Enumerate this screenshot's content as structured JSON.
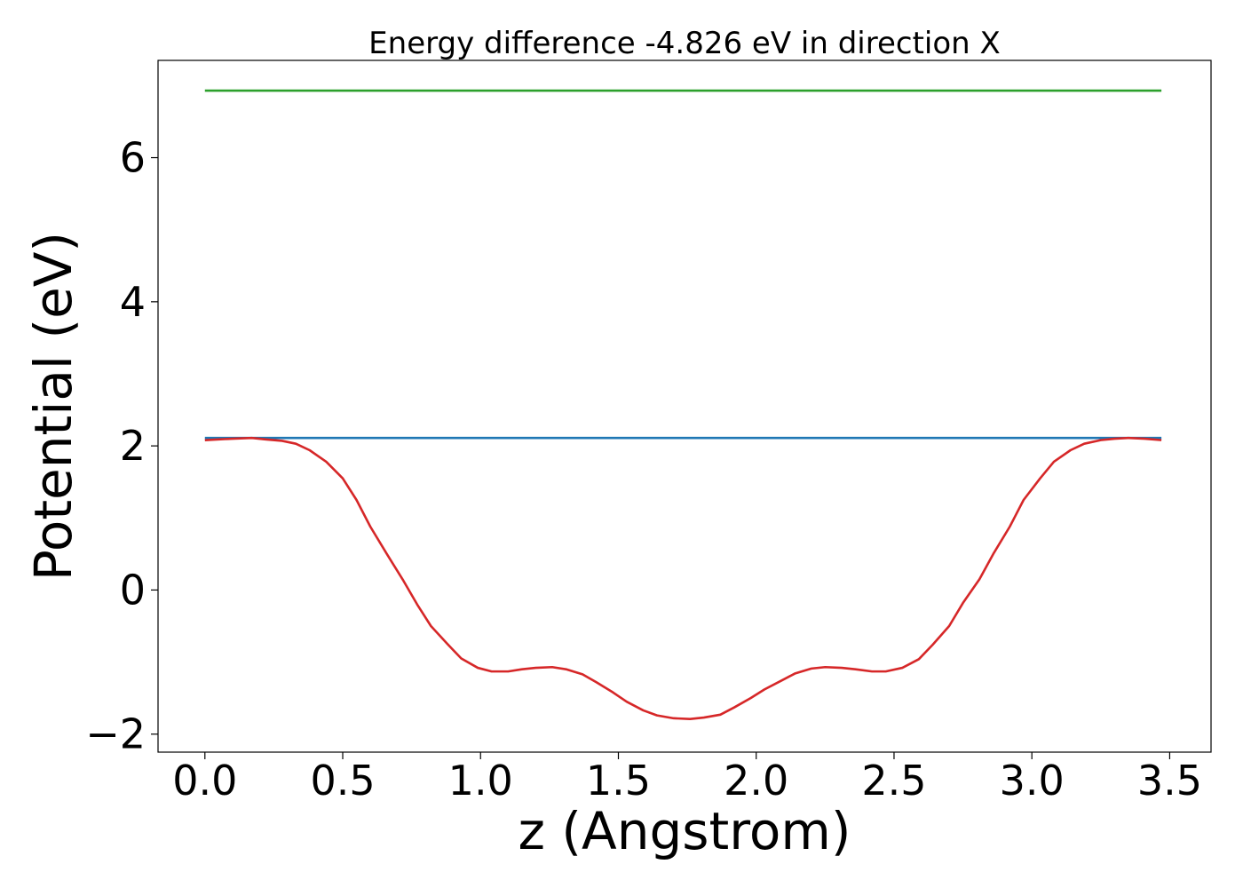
{
  "chart_data": {
    "type": "line",
    "title": "Energy difference -4.826 eV in direction X",
    "xlabel": "z (Angstrom)",
    "ylabel": "Potential (eV)",
    "xlim": [
      -0.17,
      3.65
    ],
    "ylim": [
      -2.25,
      7.35
    ],
    "x_ticks": [
      0.0,
      0.5,
      1.0,
      1.5,
      2.0,
      2.5,
      3.0,
      3.5
    ],
    "x_tick_labels": [
      "0.0",
      "0.5",
      "1.0",
      "1.5",
      "2.0",
      "2.5",
      "3.0",
      "3.5"
    ],
    "y_ticks": [
      -2,
      0,
      2,
      4,
      6
    ],
    "y_tick_labels": [
      "−2",
      "0",
      "2",
      "4",
      "6"
    ],
    "grid": false,
    "legend": "none",
    "series": [
      {
        "color": "#2ca02c",
        "x": [
          0.0,
          3.47
        ],
        "y": [
          6.93,
          6.93
        ]
      },
      {
        "color": "#1f77b4",
        "x": [
          0.0,
          3.47
        ],
        "y": [
          2.11,
          2.11
        ]
      },
      {
        "color": "#d62728",
        "x": [
          0.0,
          0.05,
          0.1,
          0.17,
          0.22,
          0.28,
          0.33,
          0.38,
          0.44,
          0.5,
          0.55,
          0.6,
          0.66,
          0.72,
          0.77,
          0.82,
          0.88,
          0.93,
          0.99,
          1.04,
          1.1,
          1.15,
          1.2,
          1.26,
          1.31,
          1.37,
          1.42,
          1.48,
          1.53,
          1.59,
          1.64,
          1.7,
          1.76,
          1.81,
          1.87,
          1.92,
          1.98,
          2.03,
          2.09,
          2.14,
          2.2,
          2.25,
          2.31,
          2.36,
          2.42,
          2.47,
          2.53,
          2.59,
          2.64,
          2.7,
          2.75,
          2.81,
          2.86,
          2.92,
          2.97,
          3.03,
          3.08,
          3.14,
          3.19,
          3.25,
          3.3,
          3.35,
          3.41,
          3.47
        ],
        "y": [
          2.08,
          2.09,
          2.1,
          2.11,
          2.09,
          2.07,
          2.03,
          1.94,
          1.78,
          1.55,
          1.25,
          0.88,
          0.5,
          0.13,
          -0.2,
          -0.5,
          -0.75,
          -0.95,
          -1.08,
          -1.13,
          -1.13,
          -1.1,
          -1.08,
          -1.07,
          -1.1,
          -1.17,
          -1.28,
          -1.42,
          -1.55,
          -1.67,
          -1.74,
          -1.78,
          -1.79,
          -1.77,
          -1.73,
          -1.63,
          -1.5,
          -1.38,
          -1.26,
          -1.16,
          -1.09,
          -1.07,
          -1.08,
          -1.1,
          -1.13,
          -1.13,
          -1.08,
          -0.96,
          -0.76,
          -0.5,
          -0.18,
          0.15,
          0.5,
          0.88,
          1.25,
          1.55,
          1.78,
          1.94,
          2.03,
          2.08,
          2.1,
          2.11,
          2.1,
          2.08
        ]
      }
    ]
  }
}
